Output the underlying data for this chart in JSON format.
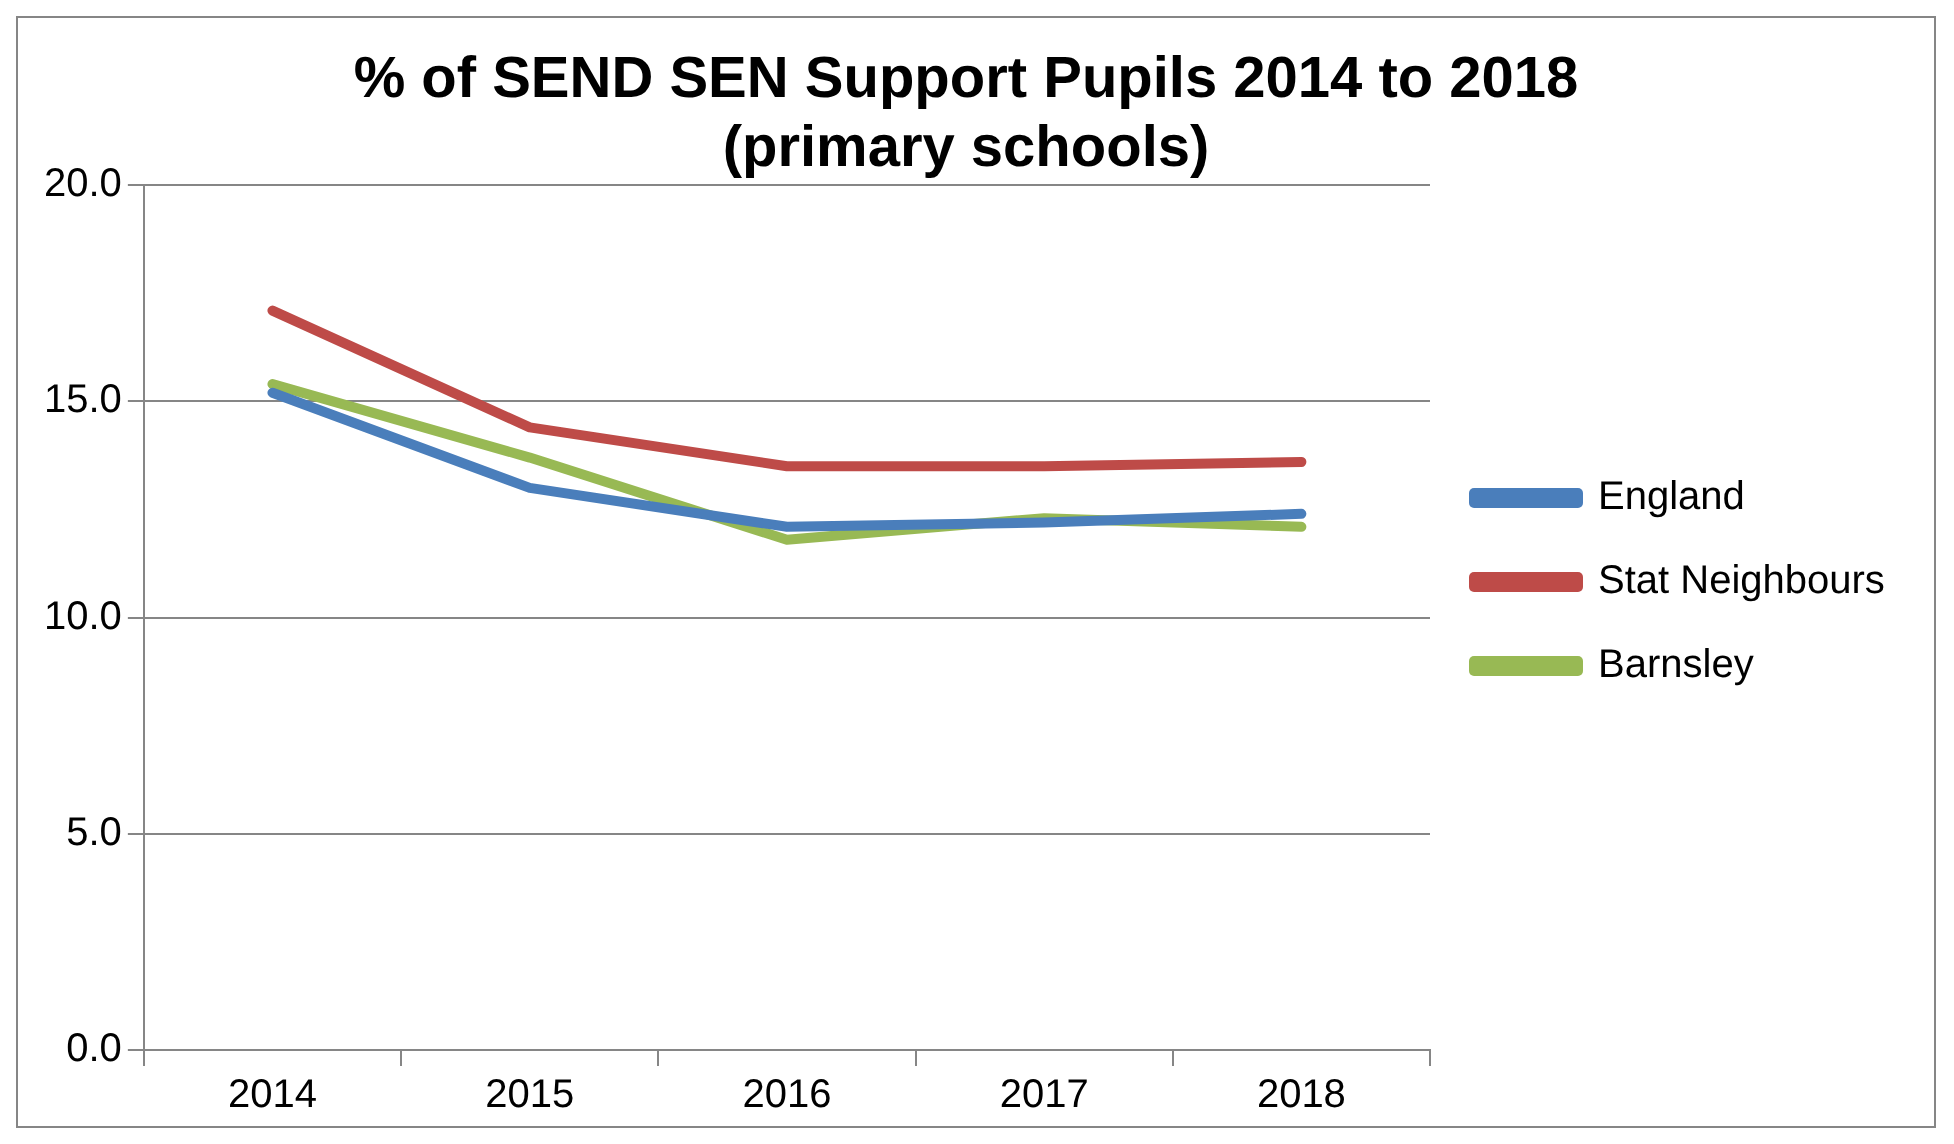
{
  "chart_data": {
    "type": "line",
    "title": [
      "% of SEND SEN Support Pupils 2014 to 2018",
      "(primary schools)"
    ],
    "categories": [
      "2014",
      "2015",
      "2016",
      "2017",
      "2018"
    ],
    "series": [
      {
        "name": "England",
        "color": "#4a7ebb",
        "values": [
          15.2,
          13.0,
          12.1,
          12.2,
          12.4
        ]
      },
      {
        "name": "Stat Neighbours",
        "color": "#be4b48",
        "values": [
          17.1,
          14.4,
          13.5,
          13.5,
          13.6
        ]
      },
      {
        "name": "Barnsley",
        "color": "#98b954",
        "values": [
          15.4,
          13.7,
          11.8,
          12.3,
          12.1
        ]
      }
    ],
    "ylim": [
      0,
      20
    ],
    "yticks": [
      {
        "value": 0,
        "label": "0.0"
      },
      {
        "value": 5,
        "label": "5.0"
      },
      {
        "value": 10,
        "label": "10.0"
      },
      {
        "value": 15,
        "label": "15.0"
      },
      {
        "value": 20,
        "label": "20.0"
      }
    ],
    "grid": "y",
    "legend": "right",
    "marker": "none",
    "line_style": "solid"
  }
}
